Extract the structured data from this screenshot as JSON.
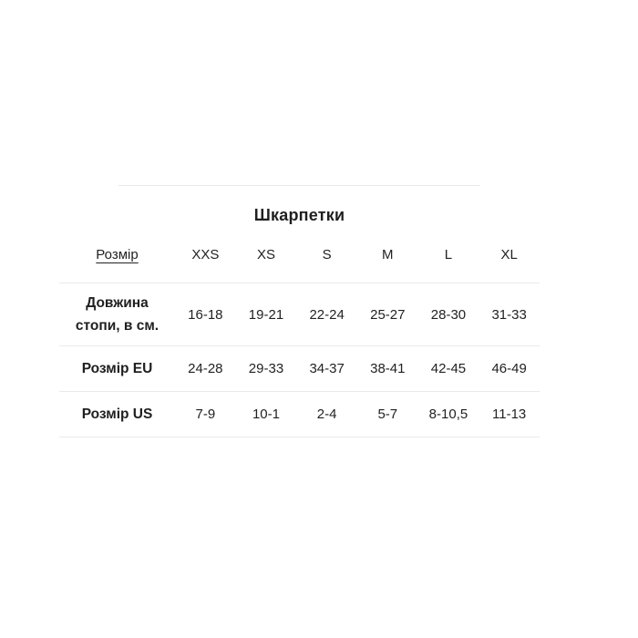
{
  "chart_data": {
    "type": "table",
    "title": "Шкарпетки",
    "corner_header": "Розмір",
    "columns": [
      "XXS",
      "XS",
      "S",
      "M",
      "L",
      "XL"
    ],
    "rows": [
      {
        "label": "Довжина стопи, в см.",
        "values": [
          "16-18",
          "19-21",
          "22-24",
          "25-27",
          "28-30",
          "31-33"
        ]
      },
      {
        "label": "Розмір EU",
        "values": [
          "24-28",
          "29-33",
          "34-37",
          "38-41",
          "42-45",
          "46-49"
        ]
      },
      {
        "label": "Розмір US",
        "values": [
          "7-9",
          "10-1",
          "2-4",
          "5-7",
          "8-10,5",
          "11-13"
        ]
      }
    ],
    "layout_hints": {
      "grid": "horizontal-row-separators-only",
      "header_corner_style": "underlined",
      "title_position": "top-center"
    }
  },
  "colors": {
    "background": "#ffffff",
    "text": "#222222",
    "border": "#e9e9e9"
  }
}
